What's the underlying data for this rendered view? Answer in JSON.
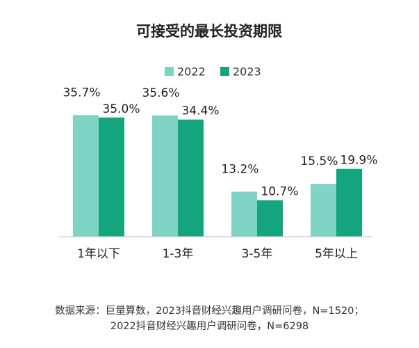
{
  "chart_data": {
    "type": "bar",
    "title": "可接受的最长投资期限",
    "categories": [
      "1年以下",
      "1-3年",
      "3-5年",
      "5年以上"
    ],
    "series": [
      {
        "name": "2022",
        "values": [
          35.7,
          35.6,
          13.2,
          15.5
        ],
        "labels": [
          "35.7%",
          "35.6%",
          "13.2%",
          "15.5%"
        ],
        "color": "#7fd3c4"
      },
      {
        "name": "2023",
        "values": [
          35.0,
          34.4,
          10.7,
          19.9
        ],
        "labels": [
          "35.0%",
          "34.4%",
          "10.7%",
          "19.9%"
        ],
        "color": "#14a47e"
      }
    ],
    "ylim": [
      0,
      46
    ],
    "grid": false,
    "legend_position": "top-center"
  },
  "source": {
    "line1": "数据来源：巨量算数，2023抖音财经兴趣用户调研问卷，N=1520；",
    "line2": "2022抖音财经兴趣用户调研问卷，N=6298"
  }
}
